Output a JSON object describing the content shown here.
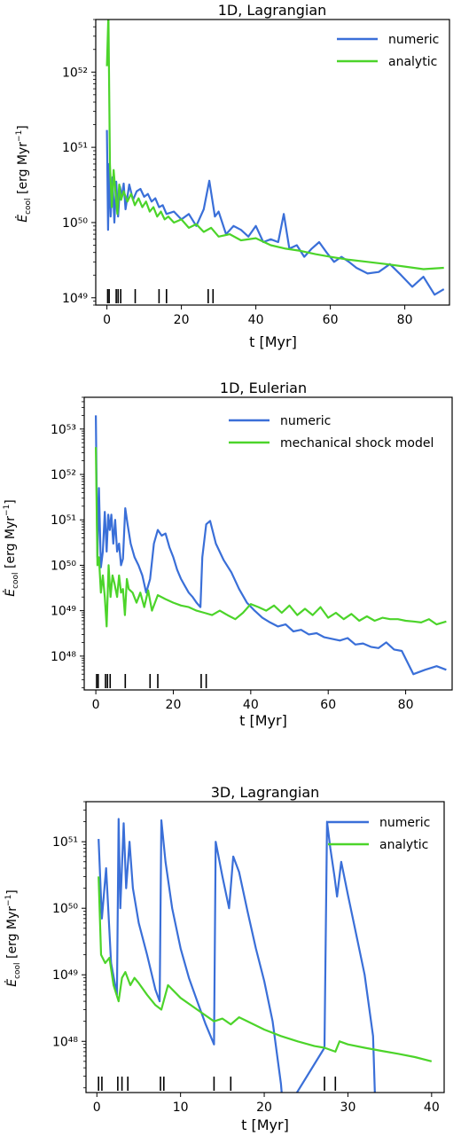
{
  "chart_data": [
    {
      "type": "line",
      "title": "1D, Lagrangian",
      "xlabel": "t [Myr]",
      "ylabel": "Ė_cool [erg Myr⁻¹]",
      "yscale": "log",
      "xlim": [
        -3,
        92
      ],
      "ylim": [
        8e+48,
        5e+52
      ],
      "x_ticks": [
        0,
        20,
        40,
        60,
        80
      ],
      "y_tick_exponents": [
        49,
        50,
        51,
        52
      ],
      "legend_position": "top-right",
      "colors": {
        "numeric": "#3a6fd8",
        "analytic": "#4cd42a"
      },
      "series": [
        {
          "name": "numeric",
          "color": "#3a6fd8",
          "x": [
            0,
            0.3,
            0.6,
            1,
            1.5,
            2,
            2.5,
            3,
            3.5,
            4,
            4.5,
            5,
            6,
            7,
            8,
            9,
            10,
            11,
            12,
            13,
            14,
            15,
            16,
            18,
            20,
            22,
            24,
            26,
            27.5,
            29,
            30,
            32,
            34,
            36,
            38,
            40,
            42,
            44,
            46,
            47.5,
            49,
            51,
            53,
            55,
            57,
            59,
            61,
            63,
            65,
            67,
            70,
            73,
            76,
            79,
            82,
            85,
            88,
            90.5
          ],
          "y": [
            1.7e+51,
            8e+49,
            6e+50,
            1.2e+50,
            4e+50,
            1e+50,
            3.5e+50,
            1.2e+50,
            3e+50,
            2.2e+50,
            3.3e+50,
            1.5e+50,
            3.2e+50,
            2e+50,
            2.6e+50,
            2.8e+50,
            2.2e+50,
            2.4e+50,
            1.9e+50,
            2.1e+50,
            1.6e+50,
            1.7e+50,
            1.3e+50,
            1.4e+50,
            1.1e+50,
            1.3e+50,
            9e+49,
            1.5e+50,
            3.6e+50,
            1.2e+50,
            1.4e+50,
            7e+49,
            9e+49,
            8e+49,
            6.5e+49,
            9e+49,
            5.5e+49,
            6e+49,
            5.5e+49,
            1.3e+50,
            4.5e+49,
            5e+49,
            3.5e+49,
            4.5e+49,
            5.5e+49,
            4e+49,
            3e+49,
            3.5e+49,
            3e+49,
            2.5e+49,
            2.1e+49,
            2.2e+49,
            2.8e+49,
            2e+49,
            1.4e+49,
            1.9e+49,
            1.1e+49,
            1.3e+49
          ]
        },
        {
          "name": "analytic",
          "color": "#4cd42a",
          "x": [
            0,
            0.4,
            0.8,
            1.3,
            1.8,
            2.3,
            2.8,
            3.3,
            3.8,
            4.5,
            5.5,
            6.5,
            7.5,
            8.5,
            9.5,
            10.5,
            11.5,
            12.5,
            13.5,
            14.5,
            15.5,
            16.5,
            18,
            20,
            22,
            24,
            26,
            28,
            30,
            33,
            36,
            40,
            44,
            48,
            52,
            56,
            60,
            65,
            70,
            75,
            80,
            85,
            90.5
          ],
          "y": [
            1.2e+52,
            6e+52,
            6e+50,
            1.6e+50,
            5e+50,
            2.5e+50,
            1.3e+50,
            3.2e+50,
            2e+50,
            2.6e+50,
            1.9e+50,
            2.4e+50,
            1.7e+50,
            2.1e+50,
            1.6e+50,
            1.9e+50,
            1.4e+50,
            1.6e+50,
            1.2e+50,
            1.4e+50,
            1.1e+50,
            1.2e+50,
            1e+50,
            1.1e+50,
            8.5e+49,
            9.5e+49,
            7.5e+49,
            8.5e+49,
            6.5e+49,
            7e+49,
            5.8e+49,
            6.2e+49,
            5e+49,
            4.5e+49,
            4.2e+49,
            3.8e+49,
            3.5e+49,
            3.2e+49,
            3e+49,
            2.8e+49,
            2.6e+49,
            2.4e+49,
            2.5e+49
          ]
        }
      ],
      "sn_times": [
        0.2,
        0.6,
        2.5,
        3.0,
        3.7,
        7.6,
        14.0,
        16.0,
        27.2,
        28.5
      ]
    },
    {
      "type": "line",
      "title": "1D, Eulerian",
      "xlabel": "t [Myr]",
      "ylabel": "Ė_cool [erg Myr⁻¹]",
      "yscale": "log",
      "xlim": [
        -3,
        92
      ],
      "ylim": [
        1.8e+47,
        5e+53
      ],
      "x_ticks": [
        0,
        20,
        40,
        60,
        80
      ],
      "y_tick_exponents": [
        48,
        49,
        50,
        51,
        52,
        53
      ],
      "legend_position": "top-right",
      "colors": {
        "numeric": "#3a6fd8",
        "mechanical shock model": "#4cd42a"
      },
      "series": [
        {
          "name": "numeric",
          "color": "#3a6fd8",
          "x": [
            0,
            0.4,
            0.8,
            1.3,
            1.8,
            2.3,
            2.8,
            3.2,
            3.6,
            4,
            4.5,
            5,
            5.5,
            6,
            6.5,
            7,
            7.6,
            8.2,
            9,
            10,
            11,
            12,
            13,
            14,
            15,
            16,
            17,
            18,
            19,
            20,
            21,
            22,
            23,
            24,
            25,
            26,
            27,
            27.5,
            28.5,
            29.5,
            31,
            33,
            35,
            37,
            39,
            41,
            43,
            45,
            47,
            49,
            51,
            53,
            55,
            57,
            59,
            61,
            63,
            65,
            67,
            69,
            71,
            73,
            75,
            77,
            79,
            82,
            85,
            88,
            90.5
          ],
          "y": [
            2e+53,
            1.5e+50,
            5e+51,
            9e+49,
            2e+50,
            1.5e+51,
            2e+50,
            1.3e+51,
            6e+50,
            1.3e+51,
            3e+50,
            1e+51,
            2e+50,
            3e+50,
            1e+50,
            1.4e+50,
            1.8e+51,
            8e+50,
            3e+50,
            1.5e+50,
            1e+50,
            6e+49,
            2.5e+49,
            5e+49,
            3e+50,
            6e+50,
            4.5e+50,
            5e+50,
            2.5e+50,
            1.5e+50,
            8e+49,
            5e+49,
            3.5e+49,
            2.5e+49,
            2e+49,
            1.5e+49,
            1.2e+49,
            1.5e+50,
            8e+50,
            9.5e+50,
            3e+50,
            1.3e+50,
            7e+49,
            3e+49,
            1.5e+49,
            1e+49,
            7e+48,
            5.5e+48,
            4.5e+48,
            5e+48,
            3.5e+48,
            3.8e+48,
            3e+48,
            3.2e+48,
            2.6e+48,
            2.4e+48,
            2.2e+48,
            2.5e+48,
            1.8e+48,
            1.9e+48,
            1.6e+48,
            1.5e+48,
            2e+48,
            1.4e+48,
            1.3e+48,
            4e+47,
            5e+47,
            6e+47,
            5e+47
          ]
        },
        {
          "name": "mechanical shock model",
          "color": "#4cd42a",
          "x": [
            0,
            0.4,
            0.8,
            1.3,
            1.8,
            2.3,
            2.8,
            3.3,
            3.8,
            4.3,
            4.8,
            5.5,
            6,
            6.5,
            7,
            7.5,
            8,
            8.5,
            9.5,
            10.5,
            11.5,
            12.5,
            13.5,
            14.5,
            16,
            18,
            20,
            22,
            24,
            26,
            28,
            30,
            32,
            34,
            36,
            38,
            40,
            42,
            44,
            46,
            48,
            50,
            52,
            54,
            56,
            58,
            60,
            62,
            64,
            66,
            68,
            70,
            72,
            74,
            76,
            78,
            80,
            82,
            84,
            86,
            88,
            90.5
          ],
          "y": [
            4e+52,
            1e+50,
            1.5e+50,
            2.5e+49,
            6e+49,
            2e+49,
            4.5e+48,
            1e+50,
            2e+49,
            6e+49,
            4e+49,
            2e+49,
            6e+49,
            2.5e+49,
            3e+49,
            8e+48,
            5e+49,
            3e+49,
            2.5e+49,
            1.5e+49,
            2.5e+49,
            1.2e+49,
            2.8e+49,
            1e+49,
            2.2e+49,
            1.8e+49,
            1.5e+49,
            1.3e+49,
            1.2e+49,
            1e+49,
            9e+48,
            8e+48,
            1e+49,
            8e+48,
            6.5e+48,
            9e+48,
            1.4e+49,
            1.2e+49,
            1e+49,
            1.3e+49,
            9e+48,
            1.3e+49,
            8e+48,
            1.1e+49,
            8e+48,
            1.2e+49,
            7e+48,
            9e+48,
            6.5e+48,
            8.5e+48,
            6e+48,
            7.5e+48,
            6e+48,
            7e+48,
            6.5e+48,
            6.5e+48,
            6e+48,
            5.8e+48,
            5.5e+48,
            6.5e+48,
            5e+48,
            5.8e+48
          ]
        }
      ],
      "sn_times": [
        0.2,
        0.6,
        2.5,
        3.0,
        3.7,
        7.6,
        14.0,
        16.0,
        27.2,
        28.5
      ]
    },
    {
      "type": "line",
      "title": "3D, Lagrangian",
      "xlabel": "t [Myr]",
      "ylabel": "Ė_cool [erg Myr⁻¹]",
      "yscale": "log",
      "xlim": [
        -1.3,
        41.5
      ],
      "ylim": [
        1.7e+47,
        4e+51
      ],
      "x_ticks": [
        0,
        10,
        20,
        30,
        40
      ],
      "y_tick_exponents": [
        48,
        49,
        50,
        51
      ],
      "legend_position": "top-right",
      "colors": {
        "numeric": "#3a6fd8",
        "analytic": "#4cd42a"
      },
      "series": [
        {
          "name": "numeric",
          "color": "#3a6fd8",
          "x": [
            0.2,
            0.6,
            1.1,
            1.7,
            2.4,
            2.6,
            2.8,
            3.2,
            3.5,
            3.9,
            4.3,
            5,
            6,
            7,
            7.5,
            7.7,
            8.2,
            9,
            10,
            11,
            12,
            13,
            14,
            14.2,
            15,
            15.8,
            16.3,
            17,
            18,
            19,
            20,
            21,
            22,
            22.3,
            27.2,
            27.5,
            27.9,
            28.4,
            28.7,
            29.2,
            30,
            31,
            32,
            33,
            33.3
          ],
          "y": [
            1.1e+51,
            7e+49,
            4e+50,
            1.5e+49,
            5e+48,
            2.2e+51,
            1e+50,
            1.9e+51,
            2e+50,
            1e+51,
            2e+50,
            6e+49,
            2e+49,
            6e+48,
            4e+48,
            2.1e+51,
            5e+50,
            1e+50,
            2.5e+49,
            9e+48,
            4e+48,
            1.8e+48,
            9e+47,
            1e+51,
            3e+50,
            1e+50,
            6e+50,
            3.5e+50,
            9e+49,
            2.5e+49,
            8e+48,
            2e+48,
            2.3e+47,
            8e+46,
            8e+47,
            2e+51,
            8e+50,
            3e+50,
            1.5e+50,
            5e+50,
            1.6e+50,
            4e+49,
            1e+49,
            1.2e+48,
            8e+46
          ]
        },
        {
          "name": "analytic",
          "color": "#4cd42a",
          "x": [
            0.2,
            0.5,
            1,
            1.5,
            2,
            2.6,
            3,
            3.4,
            4,
            4.5,
            5,
            6,
            7,
            7.7,
            8.5,
            10,
            12,
            14,
            15,
            16,
            17,
            18,
            20,
            22,
            24,
            26,
            27.2,
            28.5,
            29,
            30,
            32,
            34,
            36,
            38,
            40
          ],
          "y": [
            3e+50,
            2e+49,
            1.5e+49,
            1.8e+49,
            7e+48,
            4e+48,
            9e+48,
            1.1e+49,
            7e+48,
            9e+48,
            7.5e+48,
            5e+48,
            3.5e+48,
            3e+48,
            7e+48,
            4.5e+48,
            3e+48,
            2e+48,
            2.2e+48,
            1.8e+48,
            2.3e+48,
            2e+48,
            1.5e+48,
            1.2e+48,
            1e+48,
            8.5e+47,
            8e+47,
            7e+47,
            1e+48,
            9e+47,
            8e+47,
            7.2e+47,
            6.5e+47,
            5.8e+47,
            5e+47
          ]
        }
      ],
      "sn_times": [
        0.2,
        0.6,
        2.5,
        3.0,
        3.7,
        7.6,
        8.0,
        14.0,
        16.0,
        27.2,
        28.5
      ]
    }
  ]
}
